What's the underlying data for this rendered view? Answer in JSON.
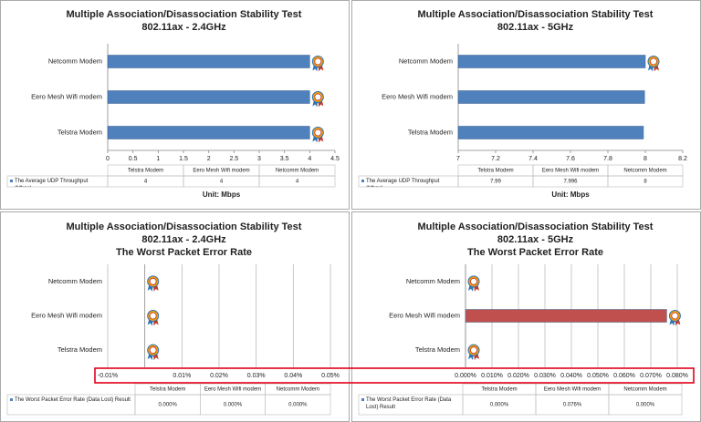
{
  "chart_data": [
    {
      "type": "bar",
      "orientation": "horizontal",
      "title": "Multiple Association/Disassociation Stability Test",
      "subtitle": [
        "802.11ax - 2.4GHz"
      ],
      "categories": [
        "Telstra Modem",
        "Eero Mesh Wifi modem",
        "Netcomm Modem"
      ],
      "series": [
        {
          "name": "The Average UDP Throughput (Mbps)",
          "color": "#4f81bd",
          "values": [
            4,
            4,
            4
          ]
        }
      ],
      "xlim": [
        0,
        4.5
      ],
      "xticks": [
        0,
        0.5,
        1,
        1.5,
        2,
        2.5,
        3,
        3.5,
        4,
        4.5
      ],
      "grid": false,
      "unit_label": "Unit: Mbps"
    },
    {
      "type": "bar",
      "orientation": "horizontal",
      "title": "Multiple Association/Disassociation Stability Test",
      "subtitle": [
        "802.11ax - 5GHz"
      ],
      "categories": [
        "Telstra Modem",
        "Eero Mesh Wifi modem",
        "Netcomm Modem"
      ],
      "series": [
        {
          "name": "The Average UDP Throughput (Mbps)",
          "color": "#4f81bd",
          "values": [
            7.99,
            7.996,
            8
          ]
        }
      ],
      "xlim": [
        7,
        8.2
      ],
      "xticks": [
        7,
        7.2,
        7.4,
        7.6,
        7.8,
        8,
        8.2
      ],
      "grid": false,
      "unit_label": "Unit: Mbps"
    },
    {
      "type": "bar",
      "orientation": "horizontal",
      "title": "Multiple Association/Disassociation Stability Test",
      "subtitle": [
        "802.11ax - 2.4GHz",
        "The Worst Packet Error Rate"
      ],
      "categories": [
        "Telstra Modem",
        "Eero Mesh Wifi modem",
        "Netcomm Modem"
      ],
      "series": [
        {
          "name": "The Worst Packet Error Rate  (Data Lost) Result",
          "color": "#c0504d",
          "values": [
            0,
            0,
            0
          ],
          "value_labels": [
            "0.000%",
            "0.000%",
            "0.000%"
          ]
        }
      ],
      "xlim": [
        -0.01,
        0.05
      ],
      "xticks": [
        {
          "value": -0.01,
          "label": "-0.01%"
        },
        {
          "value": 0.01,
          "label": "0.01%"
        },
        {
          "value": 0.02,
          "label": "0.02%"
        },
        {
          "value": 0.03,
          "label": "0.03%"
        },
        {
          "value": 0.04,
          "label": "0.04%"
        },
        {
          "value": 0.05,
          "label": "0.05%"
        }
      ],
      "grid": true
    },
    {
      "type": "bar",
      "orientation": "horizontal",
      "title": "Multiple Association/Disassociation Stability Test",
      "subtitle": [
        "802.11ax - 5GHz",
        "The Worst Packet Error Rate"
      ],
      "categories": [
        "Telstra Modem",
        "Eero Mesh Wifi modem",
        "Netcomm Modem"
      ],
      "series": [
        {
          "name": "The Worst Packet Error Rate  (Data Lost) Result",
          "color": "#c0504d",
          "values": [
            0,
            0.076,
            0
          ],
          "value_labels": [
            "0.000%",
            "0.076%",
            "0.000%"
          ]
        }
      ],
      "xlim": [
        0,
        0.08
      ],
      "xticks": [
        {
          "value": 0,
          "label": "0.000%"
        },
        {
          "value": 0.01,
          "label": "0.010%"
        },
        {
          "value": 0.02,
          "label": "0.020%"
        },
        {
          "value": 0.03,
          "label": "0.030%"
        },
        {
          "value": 0.04,
          "label": "0.040%"
        },
        {
          "value": 0.05,
          "label": "0.050%"
        },
        {
          "value": 0.06,
          "label": "0.060%"
        },
        {
          "value": 0.07,
          "label": "0.070%"
        },
        {
          "value": 0.08,
          "label": "0.080%"
        }
      ],
      "grid": true
    }
  ]
}
